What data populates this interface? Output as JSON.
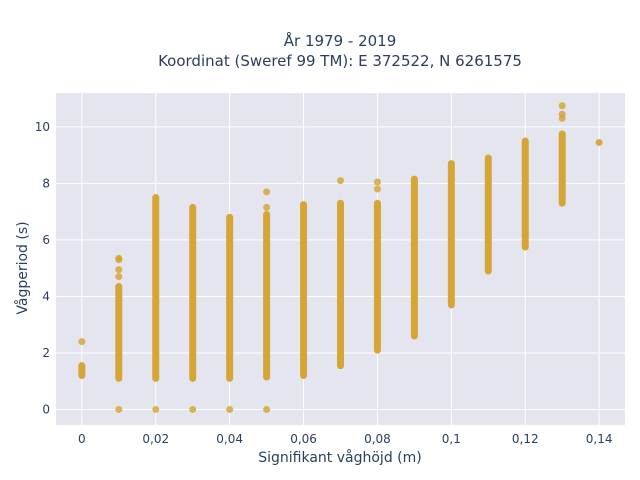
{
  "chart_data": {
    "type": "scatter",
    "title_line1": "År 1979 - 2019",
    "title_line2": "Koordinat (Sweref 99 TM): E 372522, N 6261575",
    "xlabel": "Signifikant våghöjd (m)",
    "ylabel": "Vågperiod (s)",
    "xlim": [
      -0.007,
      0.147
    ],
    "ylim": [
      -0.55,
      11.2
    ],
    "x_ticks": [
      0,
      0.02,
      0.04,
      0.06,
      0.08,
      0.1,
      0.12,
      0.14
    ],
    "x_tick_labels": [
      "0",
      "0,02",
      "0,04",
      "0,06",
      "0,08",
      "0,1",
      "0,12",
      "0,14"
    ],
    "y_ticks": [
      0,
      2,
      4,
      6,
      8,
      10
    ],
    "y_tick_labels": [
      "0",
      "2",
      "4",
      "6",
      "8",
      "10"
    ],
    "grid": true,
    "marker_color": "#d4a12a",
    "plot_bg": "#e5e5f0",
    "series": [
      {
        "columns": [
          {
            "x": 0.0,
            "y_min": 1.2,
            "y_max": 1.55,
            "outliers": [
              2.4
            ]
          },
          {
            "x": 0.01,
            "y_min": 1.1,
            "y_max": 4.35,
            "outliers": [
              0,
              4.7,
              4.95,
              5.3,
              5.35
            ]
          },
          {
            "x": 0.02,
            "y_min": 1.1,
            "y_max": 7.5,
            "outliers": [
              0
            ]
          },
          {
            "x": 0.03,
            "y_min": 1.1,
            "y_max": 7.15,
            "outliers": [
              0
            ]
          },
          {
            "x": 0.04,
            "y_min": 1.1,
            "y_max": 6.8,
            "outliers": [
              0
            ]
          },
          {
            "x": 0.05,
            "y_min": 1.15,
            "y_max": 6.9,
            "outliers": [
              0,
              7.15,
              7.7
            ]
          },
          {
            "x": 0.06,
            "y_min": 1.2,
            "y_max": 7.25,
            "outliers": []
          },
          {
            "x": 0.07,
            "y_min": 1.55,
            "y_max": 7.3,
            "outliers": [
              8.1
            ]
          },
          {
            "x": 0.08,
            "y_min": 2.1,
            "y_max": 7.3,
            "outliers": [
              7.8,
              8.05
            ]
          },
          {
            "x": 0.09,
            "y_min": 2.6,
            "y_max": 8.15,
            "outliers": []
          },
          {
            "x": 0.1,
            "y_min": 3.7,
            "y_max": 8.7,
            "outliers": []
          },
          {
            "x": 0.11,
            "y_min": 4.9,
            "y_max": 8.9,
            "outliers": []
          },
          {
            "x": 0.12,
            "y_min": 5.75,
            "y_max": 9.5,
            "outliers": []
          },
          {
            "x": 0.13,
            "y_min": 7.3,
            "y_max": 9.75,
            "outliers": [
              10.3,
              10.45,
              10.75
            ]
          },
          {
            "x": 0.14,
            "y_min": 9.45,
            "y_max": 9.45,
            "outliers": []
          }
        ]
      }
    ]
  }
}
